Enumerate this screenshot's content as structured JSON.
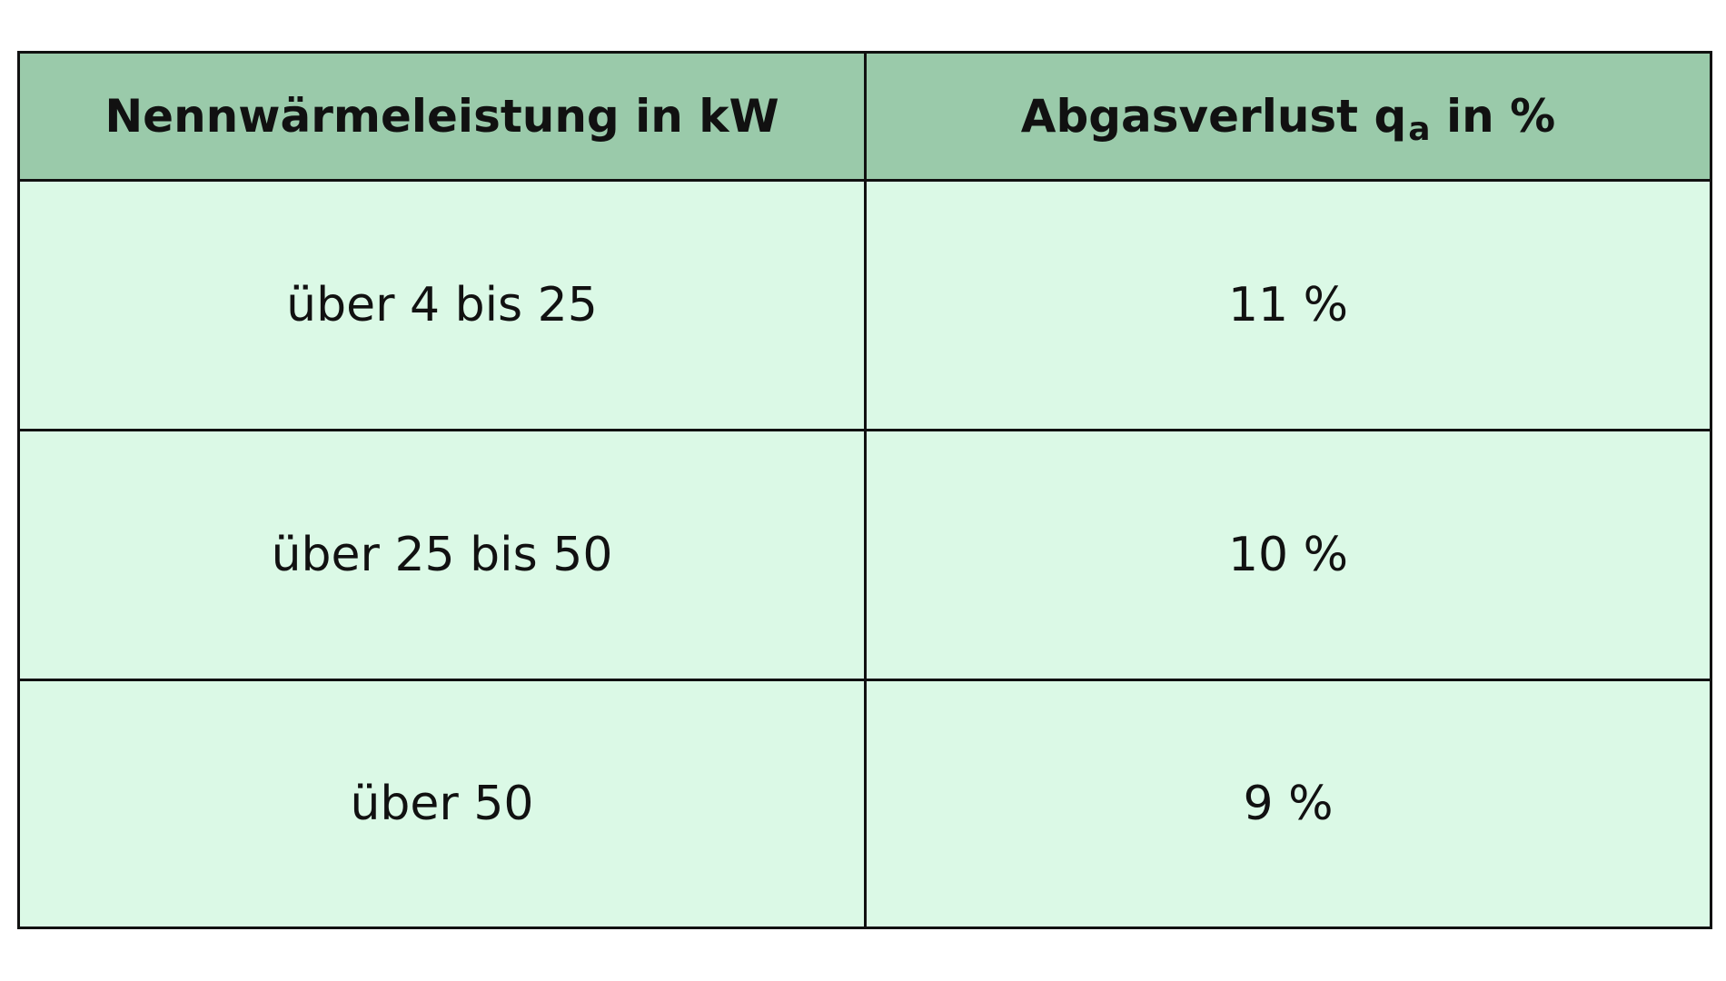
{
  "table": {
    "headers": {
      "col1": "Nennwärmeleistung in kW",
      "col2_main": "Abgasverlust q",
      "col2_sub": "a",
      "col2_tail": " in %"
    },
    "rows": [
      {
        "leistung": "über 4 bis 25",
        "verlust": "11 %"
      },
      {
        "leistung": "über 25 bis 50",
        "verlust": "10 %"
      },
      {
        "leistung": "über 50",
        "verlust": "9 %"
      }
    ]
  },
  "colors": {
    "header_bg": "#9acaaa",
    "body_bg": "#dbf9e6",
    "border": "#111111"
  }
}
